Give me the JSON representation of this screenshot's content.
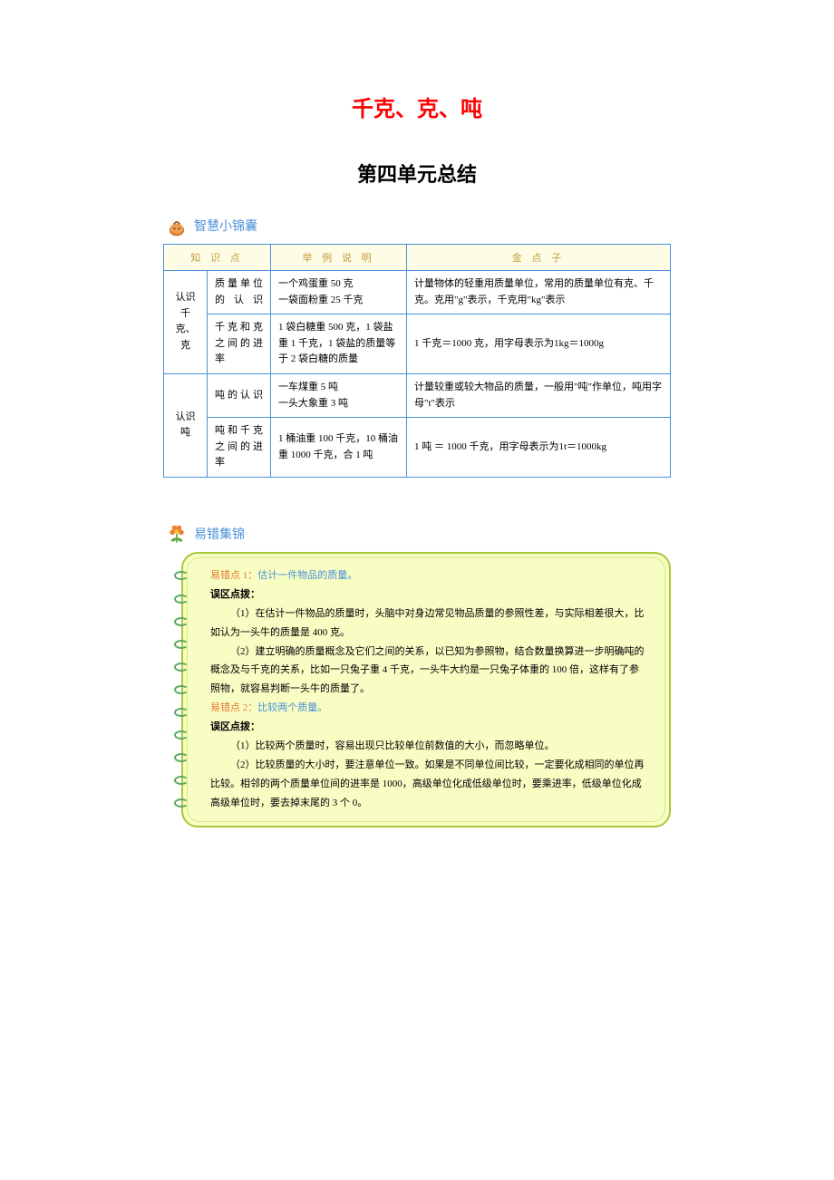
{
  "title_main": "千克、克、吨",
  "title_sub": "第四单元总结",
  "section1": {
    "title": "智慧小锦囊",
    "headers": [
      "知 识 点",
      "举 例 说 明",
      "金 点 子"
    ],
    "rows": [
      {
        "category": "认识千克、克",
        "rowspan": 2,
        "topic": "质量单位的认识",
        "example": "一个鸡蛋重 50 克\n一袋面粉重 25 千克",
        "point": "计量物体的轻重用质量单位，常用的质量单位有克、千克。克用\"g\"表示，千克用\"kg\"表示"
      },
      {
        "topic": "千克和克之间的进率",
        "example": "1 袋白糖重 500 克，1 袋盐重 1 千克，1 袋盐的质量等于 2 袋白糖的质量",
        "point": "1 千克＝1000 克，用字母表示为1kg＝1000g"
      },
      {
        "category": "认识吨",
        "rowspan": 2,
        "topic": "吨的认识",
        "example": "一车煤重 5 吨\n一头大象重 3 吨",
        "point": "计量较重或较大物品的质量，一般用\"吨\"作单位，吨用字母\"t\"表示"
      },
      {
        "topic": "吨和千克之间的进率",
        "example": "1 桶油重 100 千克，10 桶油重 1000 千克，合 1 吨",
        "point": "1 吨 ＝ 1000 千克，用字母表示为1t＝1000kg"
      }
    ]
  },
  "section2": {
    "title": "易错集锦",
    "items": [
      {
        "label": "易错点 1：",
        "title": "估计一件物品的质量。",
        "hint_label": "误区点拨：",
        "paragraphs": [
          "（1）在估计一件物品的质量时，头脑中对身边常见物品质量的参照性差，与实际相差很大，比如认为一头牛的质量是 400 克。",
          "（2）建立明确的质量概念及它们之间的关系，以已知为参照物，结合数量换算进一步明确吨的概念及与千克的关系，比如一只兔子重 4 千克，一头牛大约是一只兔子体重的 100 倍，这样有了参照物，就容易判断一头牛的质量了。"
        ]
      },
      {
        "label": "易错点 2：",
        "title": "比较两个质量。",
        "hint_label": "误区点拨：",
        "paragraphs": [
          "（1）比较两个质量时，容易出现只比较单位前数值的大小，而忽略单位。",
          "（2）比较质量的大小时，要注意单位一致。如果是不同单位间比较，一定要化成相同的单位再比较。相邻的两个质量单位间的进率是 1000，高级单位化成低级单位时，要乘进率，低级单位化成高级单位时，要去掉末尾的 3 个 0。"
        ]
      }
    ]
  },
  "colors": {
    "title_red": "#ff0000",
    "section_blue": "#4a90d9",
    "table_border": "#4a90d9",
    "th_bg": "#fffce6",
    "th_color": "#bfa040",
    "box_bg": "#f8fdc4",
    "box_border": "#a8c838",
    "mistake_orange": "#e67830",
    "spiral_green": "#60a860"
  }
}
